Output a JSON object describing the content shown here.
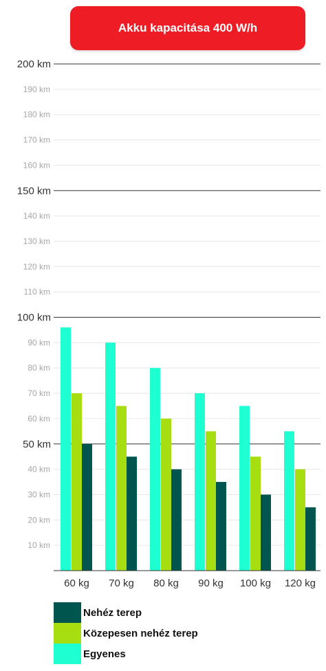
{
  "colors": {
    "title_bg": "#ee1c24",
    "major_grid": "#333333",
    "minor_grid": "#e6e6e6",
    "minor_label": "#a6a6a6",
    "major_label": "#333333"
  },
  "chart_data": {
    "type": "bar",
    "title": "Akku kapacitása 400 W/h",
    "categories": [
      "60 kg",
      "70 kg",
      "80 kg",
      "90 kg",
      "100 kg",
      "120 kg"
    ],
    "series": [
      {
        "name": "Egyenes",
        "color": "#1effd2",
        "values": [
          96,
          90,
          80,
          70,
          65,
          55
        ]
      },
      {
        "name": "Közepesen nehéz terep",
        "color": "#a6de12",
        "values": [
          70,
          65,
          60,
          55,
          45,
          40
        ]
      },
      {
        "name": "Nehéz terep",
        "color": "#00564e",
        "values": [
          50,
          45,
          40,
          35,
          30,
          25
        ]
      }
    ],
    "ylim": [
      0,
      200
    ],
    "y_ticks": [
      {
        "label": "10 km",
        "value": 10,
        "major": false
      },
      {
        "label": "20 km",
        "value": 20,
        "major": false
      },
      {
        "label": "30 km",
        "value": 30,
        "major": false
      },
      {
        "label": "40 km",
        "value": 40,
        "major": false
      },
      {
        "label": "50 km",
        "value": 50,
        "major": true
      },
      {
        "label": "60 km",
        "value": 60,
        "major": false
      },
      {
        "label": "70 km",
        "value": 70,
        "major": false
      },
      {
        "label": "80 km",
        "value": 80,
        "major": false
      },
      {
        "label": "90 km",
        "value": 90,
        "major": false
      },
      {
        "label": "100 km",
        "value": 100,
        "major": true
      },
      {
        "label": "110 km",
        "value": 110,
        "major": false
      },
      {
        "label": "120 km",
        "value": 120,
        "major": false
      },
      {
        "label": "130 km",
        "value": 130,
        "major": false
      },
      {
        "label": "140 km",
        "value": 140,
        "major": false
      },
      {
        "label": "150 km",
        "value": 150,
        "major": true
      },
      {
        "label": "160 km",
        "value": 160,
        "major": false
      },
      {
        "label": "170 km",
        "value": 170,
        "major": false
      },
      {
        "label": "180 km",
        "value": 180,
        "major": false
      },
      {
        "label": "190 km",
        "value": 190,
        "major": false
      },
      {
        "label": "200 km",
        "value": 200,
        "major": true
      }
    ],
    "legend": [
      {
        "label": "Nehéz terep",
        "color": "#00564e"
      },
      {
        "label": "Közepesen nehéz terep",
        "color": "#a6de12"
      },
      {
        "label": "Egyenes",
        "color": "#1effd2"
      }
    ]
  }
}
